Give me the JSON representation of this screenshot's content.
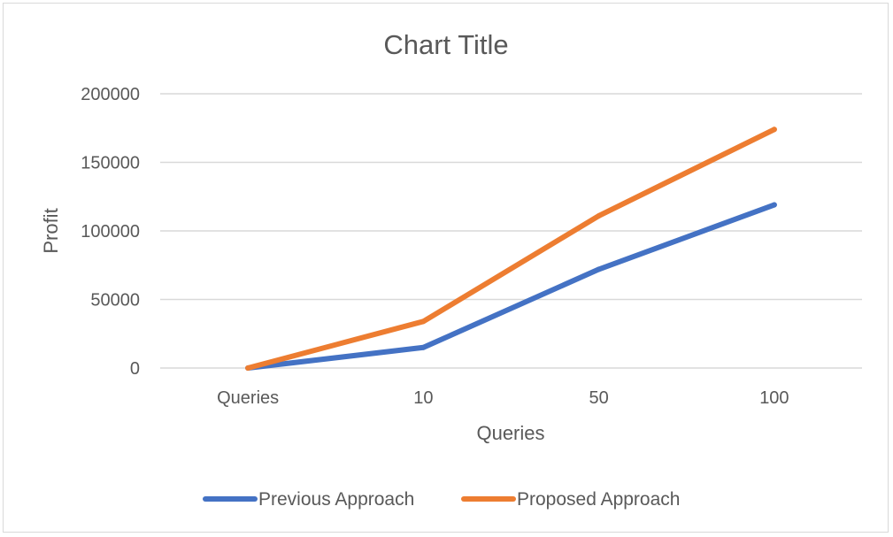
{
  "chart_data": {
    "type": "line",
    "title": "Chart Title",
    "xlabel": "Queries",
    "ylabel": "Profit",
    "categories": [
      "Queries",
      "10",
      "50",
      "100"
    ],
    "ylim": [
      0,
      200000
    ],
    "yticks": [
      0,
      50000,
      100000,
      150000,
      200000
    ],
    "grid": true,
    "legend_position": "bottom",
    "series": [
      {
        "name": "Previous Approach",
        "color": "#4472C4",
        "values": [
          0,
          15000,
          72000,
          119000
        ]
      },
      {
        "name": "Proposed Approach",
        "color": "#ED7D31",
        "values": [
          0,
          34000,
          111000,
          174000
        ]
      }
    ]
  }
}
